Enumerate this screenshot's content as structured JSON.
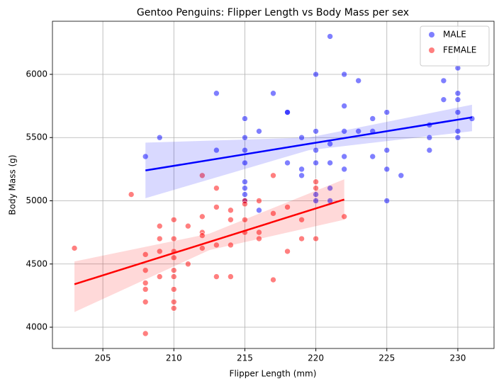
{
  "chart_data": {
    "type": "scatter",
    "title": "Gentoo Penguins: Flipper Length vs Body Mass per sex",
    "x_label": "Flipper Length (mm)",
    "y_label": "Body Mass (g)",
    "xlim": [
      201.45,
      232.55
    ],
    "ylim": [
      3832,
      6420
    ],
    "xticks": [
      205,
      210,
      215,
      220,
      225,
      230
    ],
    "yticks": [
      4000,
      4500,
      5000,
      5500,
      6000
    ],
    "grid": true,
    "legend": "upper right",
    "series": [
      {
        "name": "MALE",
        "color": "#0000ff",
        "x": [
          208,
          209,
          213,
          213,
          215,
          215,
          215,
          215,
          215,
          215,
          215,
          215,
          216,
          216,
          217,
          218,
          218,
          218,
          219,
          219,
          219,
          220,
          220,
          220,
          220,
          220,
          220,
          221,
          221,
          221,
          221,
          221,
          222,
          222,
          222,
          222,
          222,
          223,
          223,
          224,
          224,
          224,
          225,
          225,
          225,
          225,
          226,
          228,
          228,
          228,
          229,
          229,
          230,
          230,
          230,
          230,
          230,
          230,
          231
        ],
        "values": [
          5350,
          5500,
          5850,
          5400,
          5650,
          5500,
          5400,
          5300,
          5150,
          5100,
          5050,
          5000,
          5550,
          4925,
          5850,
          5700,
          5700,
          5300,
          5500,
          5250,
          5200,
          6000,
          5550,
          5400,
          5300,
          5050,
          5000,
          6300,
          5450,
          5300,
          5100,
          5000,
          6000,
          5750,
          5550,
          5350,
          5250,
          5950,
          5550,
          5650,
          5550,
          5350,
          5700,
          5400,
          5250,
          5000,
          5200,
          5600,
          5500,
          5400,
          5950,
          5800,
          6050,
          5850,
          5800,
          5700,
          5550,
          5500,
          5650
        ],
        "regression": {
          "x": [
            208,
            219.5,
            231
          ],
          "y": [
            5240,
            5450,
            5660
          ],
          "ci_lower": [
            5020,
            5400,
            5550
          ],
          "ci_upper": [
            5460,
            5500,
            5760
          ]
        }
      },
      {
        "name": "FEMALE",
        "color": "#ff0000",
        "x": [
          203,
          207,
          208,
          208,
          208,
          208,
          208,
          208,
          209,
          209,
          209,
          209,
          210,
          210,
          210,
          210,
          210,
          210,
          210,
          210,
          210,
          211,
          211,
          212,
          212,
          212,
          212,
          212,
          213,
          213,
          213,
          213,
          214,
          214,
          214,
          214,
          215,
          215,
          215,
          215,
          216,
          216,
          216,
          217,
          217,
          217,
          218,
          218,
          219,
          219,
          220,
          220,
          220,
          222
        ],
        "values": [
          4625,
          5050,
          4575,
          4450,
          4350,
          4300,
          4200,
          3950,
          4800,
          4700,
          4600,
          4400,
          4850,
          4700,
          4600,
          4550,
          4450,
          4400,
          4300,
          4200,
          4150,
          4800,
          4500,
          5200,
          4875,
          4750,
          4725,
          4625,
          5100,
          4950,
          4650,
          4400,
          4925,
          4850,
          4650,
          4400,
          5000,
          4975,
          4850,
          4750,
          5000,
          4750,
          4700,
          5200,
          4900,
          4375,
          4950,
          4600,
          4850,
          4700,
          5150,
          5100,
          4700,
          4875
        ],
        "regression": {
          "x": [
            203,
            212.5,
            222
          ],
          "y": [
            4340,
            4675,
            5010
          ],
          "ci_lower": [
            4120,
            4610,
            4850
          ],
          "ci_upper": [
            4520,
            4740,
            5170
          ]
        }
      }
    ]
  }
}
